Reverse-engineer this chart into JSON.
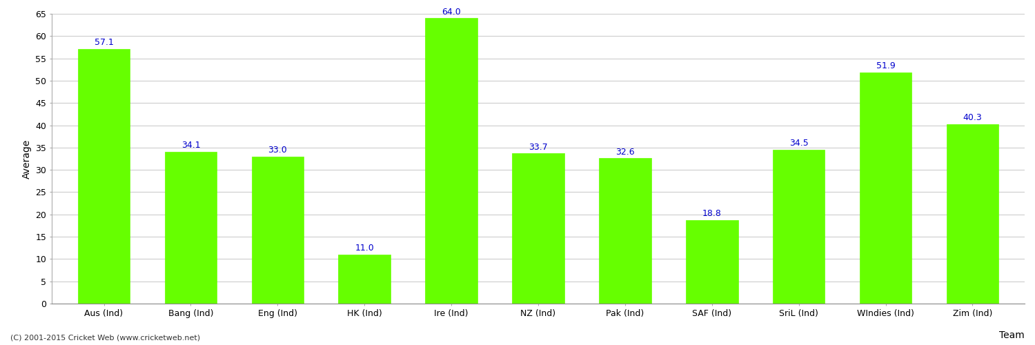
{
  "categories": [
    "Aus (Ind)",
    "Bang (Ind)",
    "Eng (Ind)",
    "HK (Ind)",
    "Ire (Ind)",
    "NZ (Ind)",
    "Pak (Ind)",
    "SAF (Ind)",
    "SriL (Ind)",
    "WIndies (Ind)",
    "Zim (Ind)"
  ],
  "values": [
    57.1,
    34.1,
    33.0,
    11.0,
    64.0,
    33.7,
    32.6,
    18.8,
    34.5,
    51.9,
    40.3
  ],
  "bar_color": "#66ff00",
  "bar_edge_color": "#66ff00",
  "label_color": "#0000cc",
  "xlabel": "Team",
  "ylabel": "Average",
  "ylim": [
    0,
    65
  ],
  "yticks": [
    0,
    5,
    10,
    15,
    20,
    25,
    30,
    35,
    40,
    45,
    50,
    55,
    60,
    65
  ],
  "grid_color": "#cccccc",
  "background_color": "#ffffff",
  "footer": "(C) 2001-2015 Cricket Web (www.cricketweb.net)",
  "label_fontsize": 9,
  "axis_fontsize": 9,
  "footer_fontsize": 8
}
